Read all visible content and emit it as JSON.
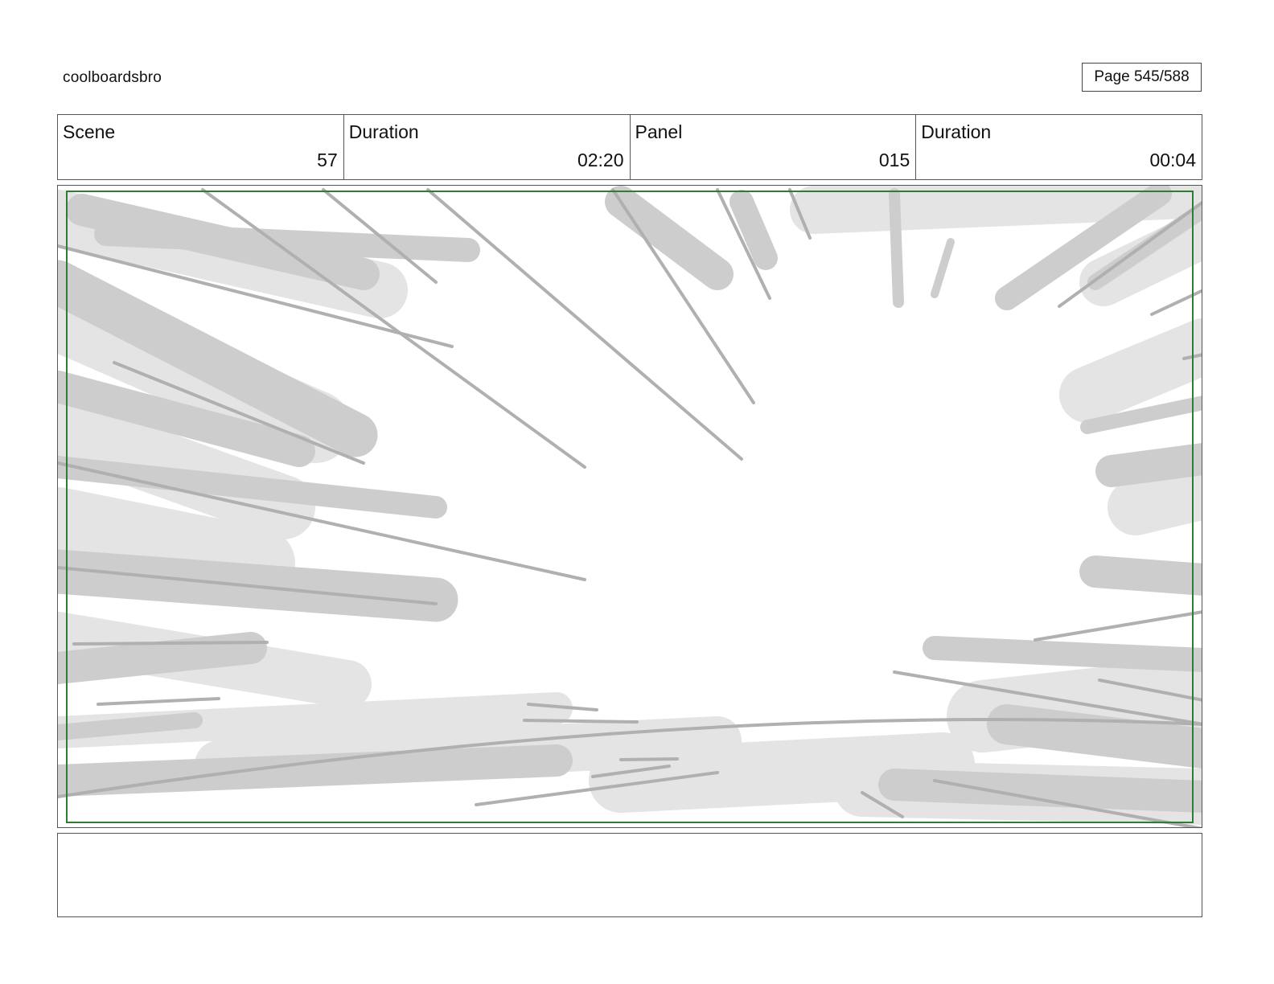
{
  "header": {
    "author": "coolboardsbro",
    "page_label": "Page 545/588"
  },
  "info": {
    "scene_label": "Scene",
    "scene_value": "57",
    "scene_duration_label": "Duration",
    "scene_duration_value": "02:20",
    "panel_label": "Panel",
    "panel_value": "015",
    "panel_duration_label": "Duration",
    "panel_duration_value": "00:04"
  },
  "panel": {
    "image_description": "speed-lines-burst-sketch",
    "safe_frame_color": "#2e7d32",
    "shade_light": "#e4e4e4",
    "shade_mid": "#cdcdcd",
    "line_color": "#b0b0b0"
  },
  "notes": {
    "text": ""
  }
}
